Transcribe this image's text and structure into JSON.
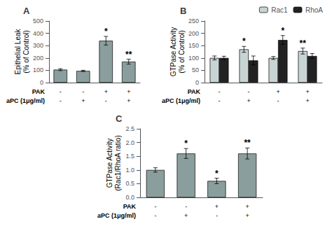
{
  "chart_data": [
    {
      "type": "bar",
      "title": "A",
      "ylabel": "Epithelial Leak\n(% of Control)",
      "category_rows": [
        {
          "name": "PAK",
          "labels": [
            "-",
            "-",
            "+",
            "+"
          ]
        },
        {
          "name": "aPC (1μg/ml)",
          "labels": [
            "-",
            "+",
            "-",
            "+"
          ]
        }
      ],
      "series": [
        {
          "color": "#8B9E9E",
          "values": [
            105,
            95,
            340,
            170
          ],
          "errors": [
            8,
            5,
            35,
            20
          ],
          "annotations": [
            null,
            null,
            "*",
            "**"
          ]
        }
      ],
      "ylim": [
        0,
        500
      ],
      "yticks": [
        0,
        100,
        200,
        300,
        400,
        500
      ],
      "grid": false
    },
    {
      "type": "bar",
      "title": "B",
      "ylabel": "GTPase Activity\n(% of Control)",
      "category_rows": [
        {
          "name": "PAK",
          "labels": [
            "-",
            "-",
            "+",
            "+"
          ]
        },
        {
          "name": "aPC (1μg/ml)",
          "labels": [
            "-",
            "+",
            "-",
            "+"
          ]
        }
      ],
      "series": [
        {
          "name": "Rac1",
          "color": "#C8D4D4",
          "values": [
            100,
            135,
            100,
            128
          ],
          "errors": [
            8,
            12,
            6,
            12
          ],
          "annotations": [
            null,
            "*",
            null,
            "**"
          ]
        },
        {
          "name": "RhoA",
          "color": "#222222",
          "values": [
            100,
            90,
            173,
            108
          ],
          "errors": [
            7,
            18,
            18,
            10
          ],
          "annotations": [
            null,
            null,
            "*",
            null
          ]
        }
      ],
      "ylim": [
        0,
        250
      ],
      "yticks": [
        0,
        50,
        100,
        150,
        200,
        250
      ],
      "grid": false,
      "legend": "upper right"
    },
    {
      "type": "bar",
      "title": "C",
      "ylabel": "GTPase Activity\n(Rac1/RhoA ratio)",
      "category_rows": [
        {
          "name": "PAK",
          "labels": [
            "-",
            "-",
            "+",
            "+"
          ]
        },
        {
          "name": "aPC (1μg/ml)",
          "labels": [
            "-",
            "+",
            "-",
            "+"
          ]
        }
      ],
      "series": [
        {
          "color": "#8B9E9E",
          "values": [
            1.0,
            1.6,
            0.6,
            1.6
          ],
          "errors": [
            0.08,
            0.18,
            0.1,
            0.2
          ],
          "annotations": [
            null,
            "*",
            "*",
            "**"
          ]
        }
      ],
      "ylim": [
        0,
        2.5
      ],
      "yticks": [
        {
          "value": 0,
          "label": "0.0"
        },
        0.5,
        {
          "value": 1,
          "label": "1.0"
        },
        1.5,
        {
          "value": 2,
          "label": "2.0"
        },
        2.5
      ],
      "grid": false
    }
  ]
}
